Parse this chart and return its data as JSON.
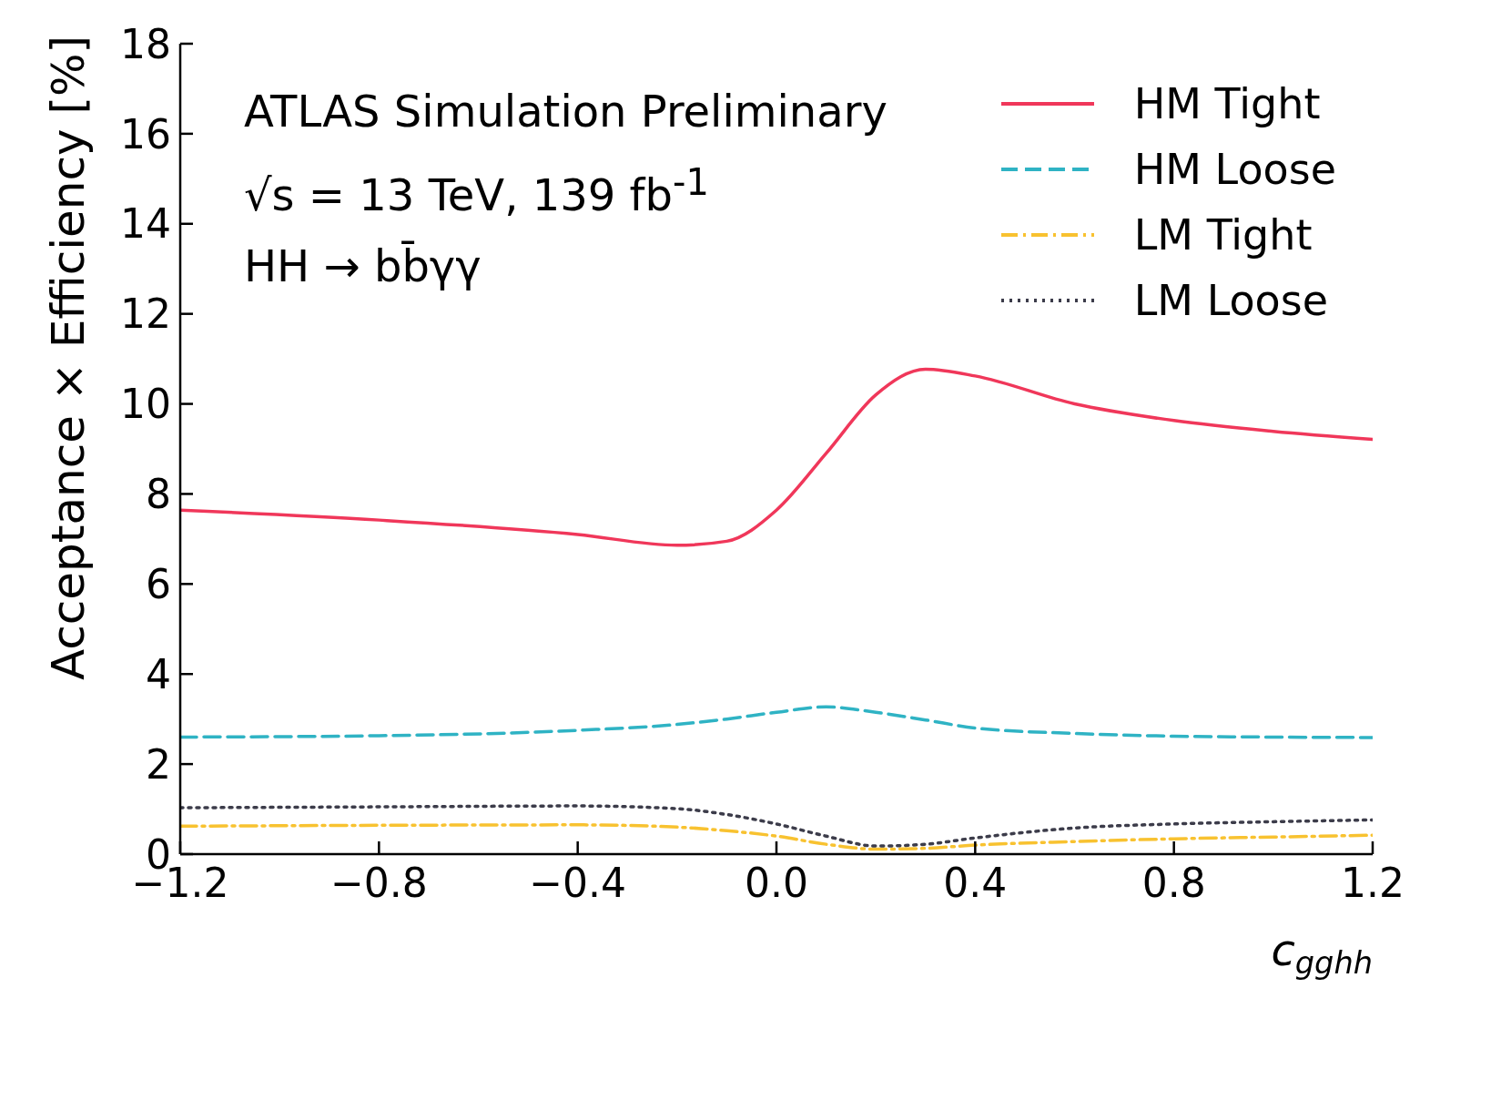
{
  "chart_data": {
    "type": "line",
    "annotations": [
      "ATLAS Simulation Preliminary",
      "√s = 13 TeV, 139 fb$^{-1}$",
      "HH → bb̄γγ"
    ],
    "xlabel": "c$_{gghh}$",
    "ylabel": "Acceptance × Efficiency [%]",
    "x": [
      -1.2,
      -0.8,
      -0.4,
      -0.2,
      -0.1,
      0.0,
      0.1,
      0.2,
      0.3,
      0.4,
      0.6,
      0.8,
      1.0,
      1.2
    ],
    "series": [
      {
        "name": "HM Tight",
        "color": "#f0375a",
        "line_style": "solid",
        "values": [
          7.64,
          7.42,
          7.1,
          6.86,
          6.95,
          7.64,
          8.9,
          10.2,
          10.77,
          10.62,
          10.0,
          9.63,
          9.39,
          9.21
        ]
      },
      {
        "name": "HM Loose",
        "color": "#2fb3c4",
        "line_style": "dashed",
        "values": [
          2.6,
          2.63,
          2.75,
          2.88,
          3.0,
          3.15,
          3.27,
          3.15,
          2.98,
          2.8,
          2.68,
          2.62,
          2.6,
          2.59
        ]
      },
      {
        "name": "LM Tight",
        "color": "#f8c230",
        "line_style": "dashdot",
        "values": [
          0.62,
          0.64,
          0.65,
          0.6,
          0.52,
          0.4,
          0.22,
          0.11,
          0.13,
          0.2,
          0.28,
          0.34,
          0.38,
          0.42
        ]
      },
      {
        "name": "LM Loose",
        "color": "#3c3c4a",
        "line_style": "dotted",
        "values": [
          1.03,
          1.05,
          1.07,
          1.01,
          0.88,
          0.67,
          0.4,
          0.18,
          0.22,
          0.36,
          0.58,
          0.67,
          0.72,
          0.76
        ]
      }
    ],
    "xlim": [
      -1.2,
      1.2
    ],
    "xticks": [
      {
        "value": -1.2,
        "label": "−1.2"
      },
      {
        "value": -0.8,
        "label": "−0.8"
      },
      {
        "value": -0.4,
        "label": "−0.4"
      },
      {
        "value": 0.0,
        "label": "0.0"
      },
      {
        "value": 0.4,
        "label": "0.4"
      },
      {
        "value": 0.8,
        "label": "0.8"
      },
      {
        "value": 1.2,
        "label": "1.2"
      }
    ],
    "ylim": [
      0,
      18
    ],
    "yticks": [
      0,
      2,
      4,
      6,
      8,
      10,
      12,
      14,
      16,
      18
    ],
    "legend": "top right",
    "grid": false
  }
}
